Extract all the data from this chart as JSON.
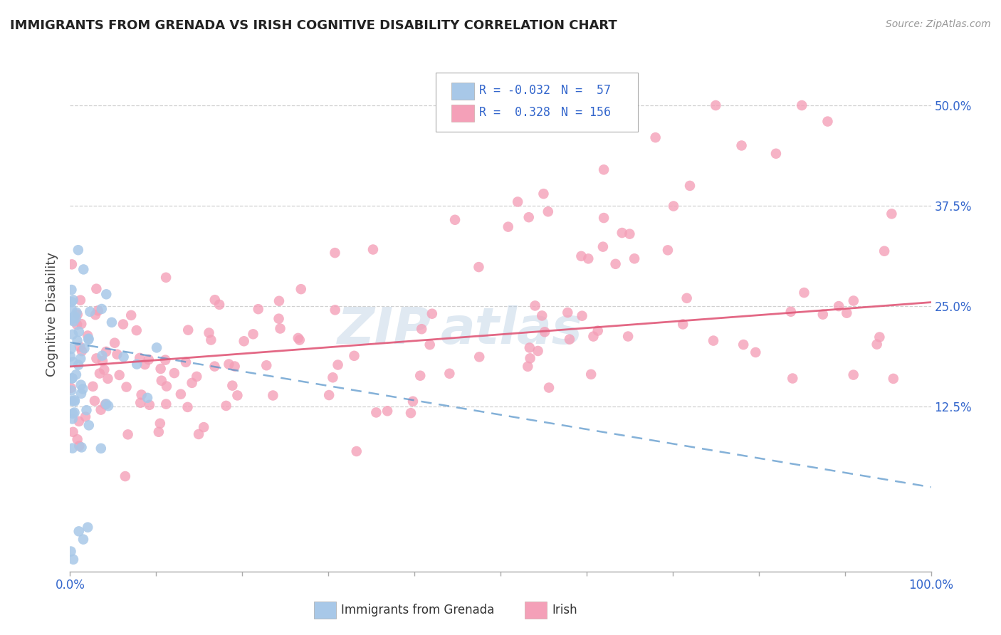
{
  "title": "IMMIGRANTS FROM GRENADA VS IRISH COGNITIVE DISABILITY CORRELATION CHART",
  "source": "Source: ZipAtlas.com",
  "ylabel": "Cognitive Disability",
  "xlim": [
    0.0,
    1.0
  ],
  "ylim": [
    -0.08,
    0.56
  ],
  "blue_color": "#a8c8e8",
  "pink_color": "#f4a0b8",
  "blue_line_color": "#5090c8",
  "pink_line_color": "#e05878",
  "blue_R": -0.032,
  "blue_N": 57,
  "pink_R": 0.328,
  "pink_N": 156,
  "watermark_color": "#c8d8e8",
  "grid_color": "#cccccc",
  "ytick_labels": [
    "12.5%",
    "25.0%",
    "37.5%",
    "50.0%"
  ],
  "ytick_vals": [
    0.125,
    0.25,
    0.375,
    0.5
  ],
  "title_fontsize": 13,
  "tick_fontsize": 12,
  "label_fontsize": 12
}
